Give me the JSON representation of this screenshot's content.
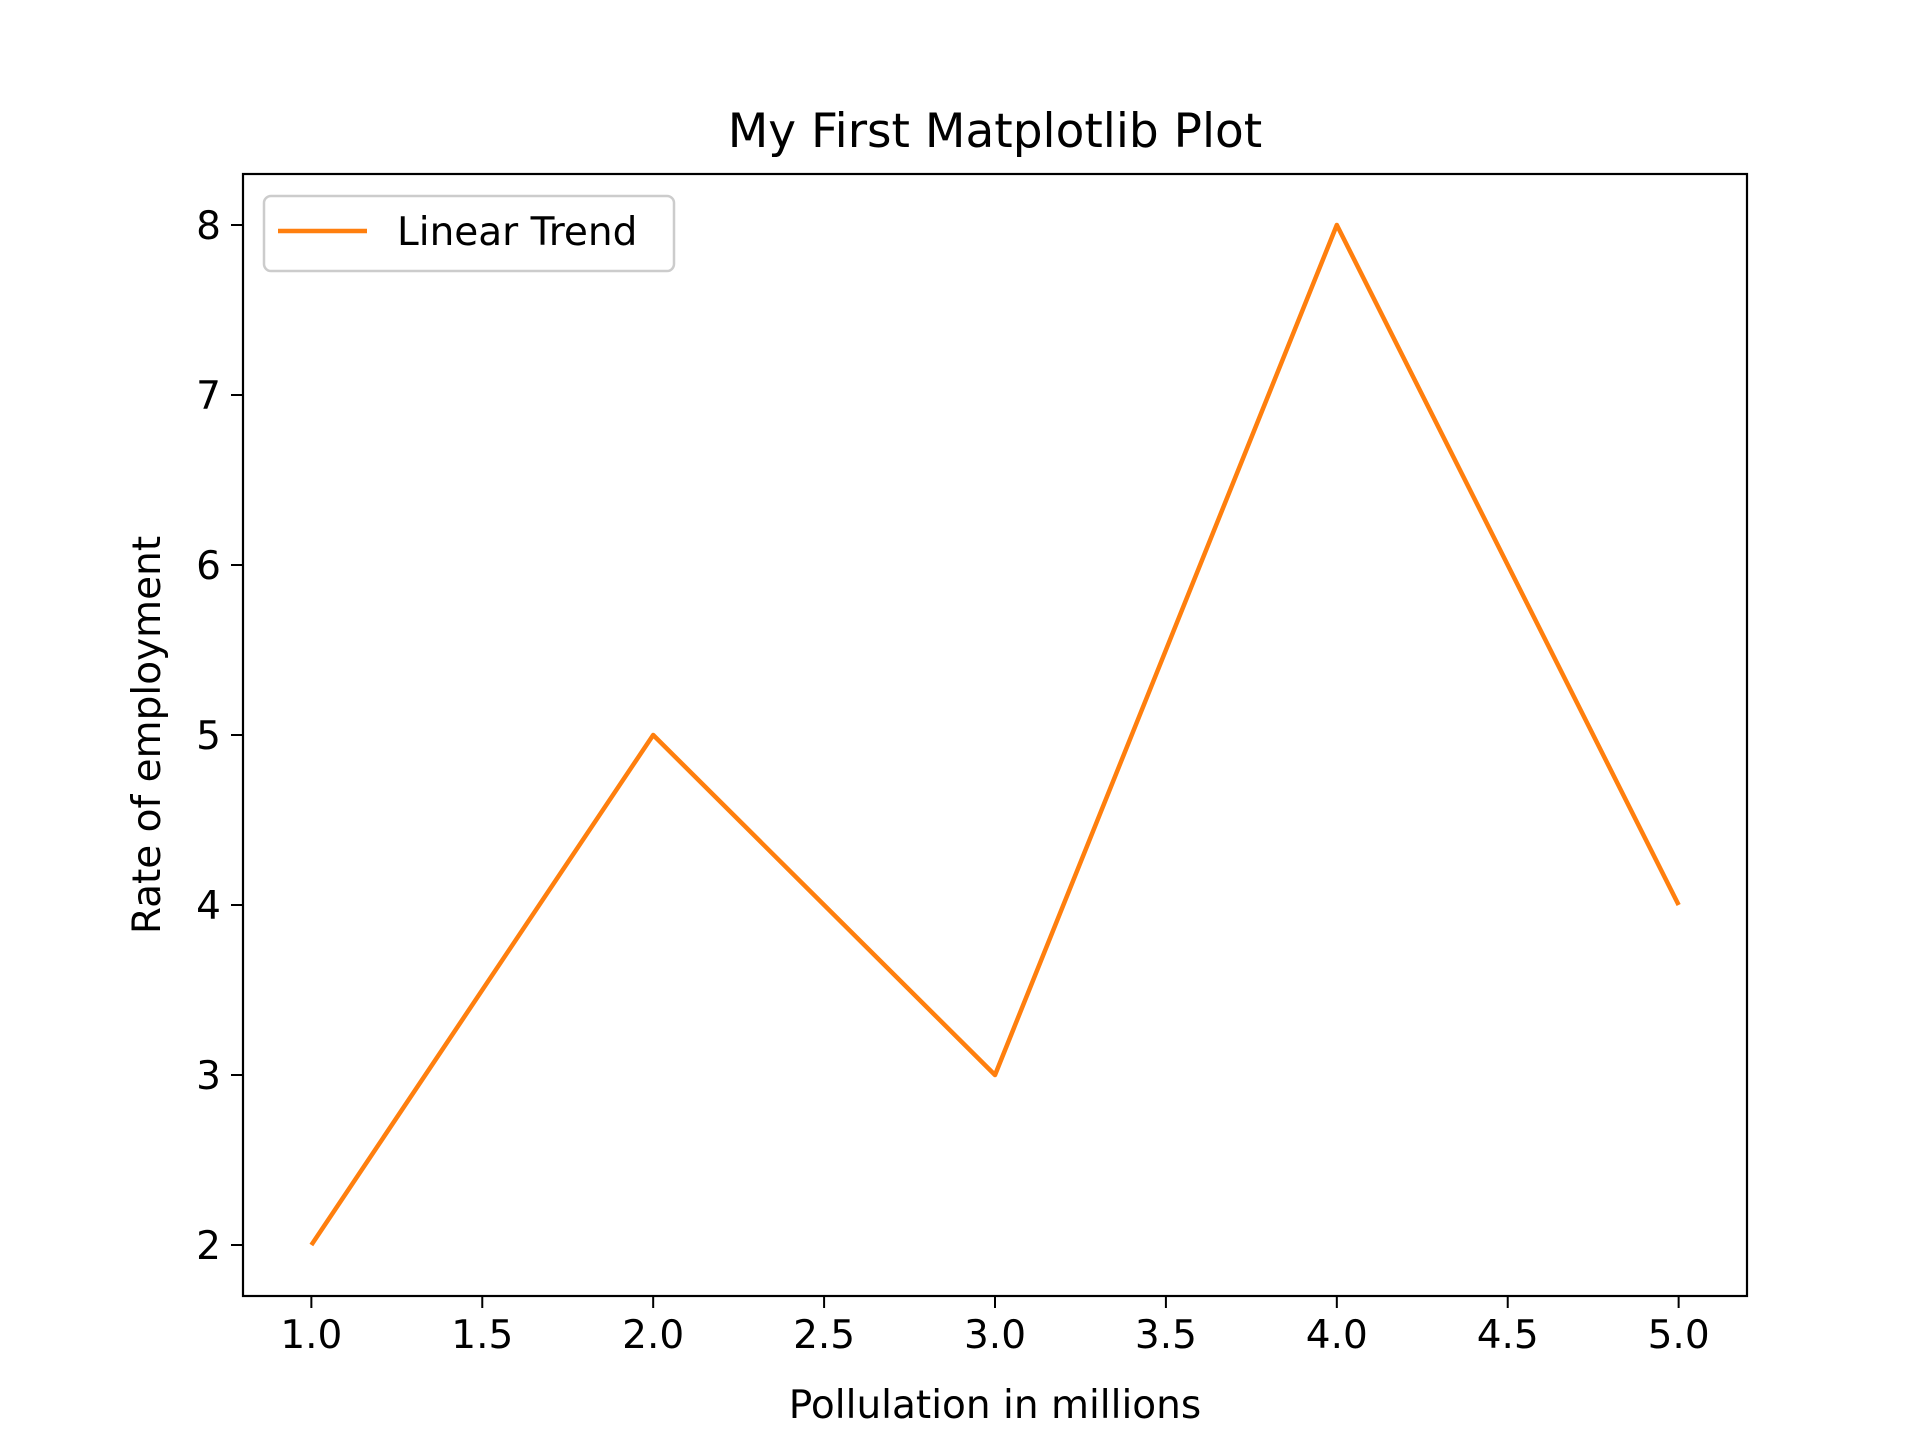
{
  "chart_data": {
    "type": "line",
    "title": "My First Matplotlib Plot",
    "xlabel": "Pollulation in millions",
    "ylabel": "Rate of employment",
    "x": [
      1.0,
      2.0,
      3.0,
      4.0,
      5.0
    ],
    "series": [
      {
        "name": "Linear Trend",
        "color": "#ff7f0e",
        "values": [
          2,
          5,
          3,
          8,
          4
        ]
      }
    ],
    "xlim": [
      0.8,
      5.2
    ],
    "ylim": [
      1.7,
      8.3
    ],
    "xticks": [
      1.0,
      1.5,
      2.0,
      2.5,
      3.0,
      3.5,
      4.0,
      4.5,
      5.0
    ],
    "xtick_labels": [
      "1.0",
      "1.5",
      "2.0",
      "2.5",
      "3.0",
      "3.5",
      "4.0",
      "4.5",
      "5.0"
    ],
    "yticks": [
      2,
      3,
      4,
      5,
      6,
      7,
      8
    ],
    "ytick_labels": [
      "2",
      "3",
      "4",
      "5",
      "6",
      "7",
      "8"
    ],
    "grid": false,
    "legend_position": "upper-left"
  }
}
